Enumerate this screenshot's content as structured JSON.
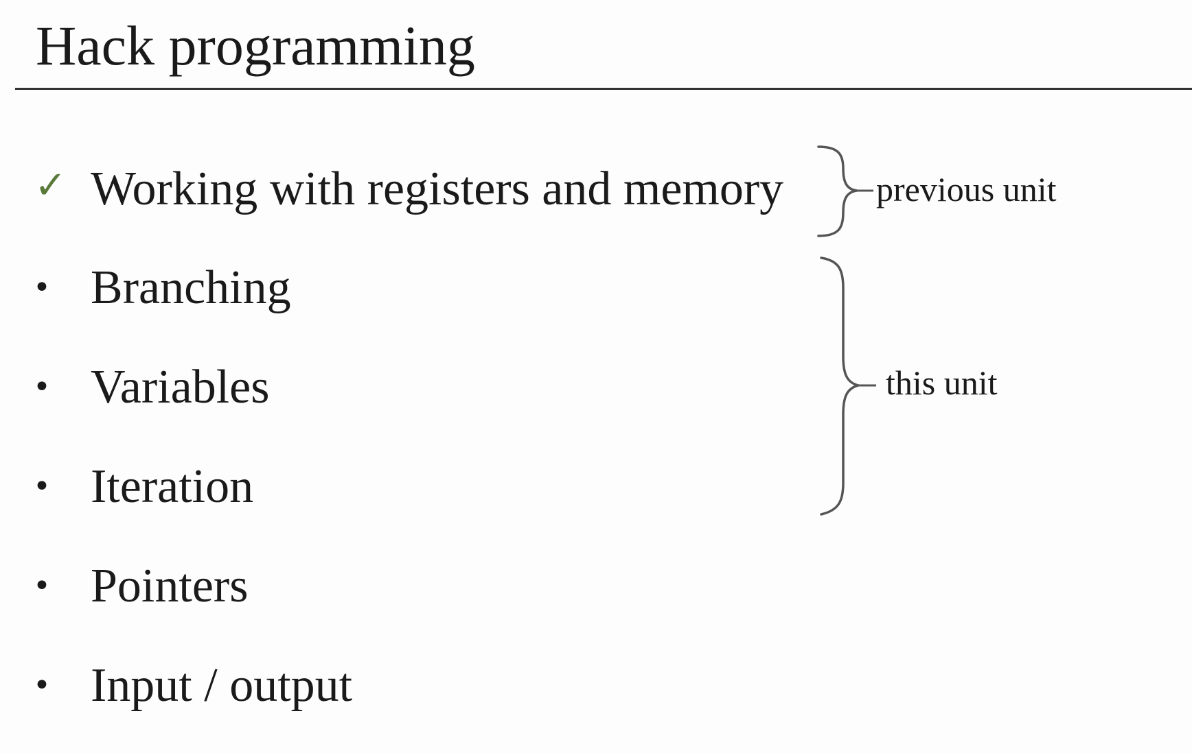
{
  "slide": {
    "title": "Hack programming",
    "items": [
      {
        "marker": "check",
        "label": "Working with registers and memory"
      },
      {
        "marker": "bullet",
        "label": "Branching"
      },
      {
        "marker": "bullet",
        "label": "Variables"
      },
      {
        "marker": "bullet",
        "label": "Iteration"
      },
      {
        "marker": "bullet",
        "label": "Pointers"
      },
      {
        "marker": "bullet",
        "label": "Input / output"
      }
    ],
    "brackets": {
      "previous": "previous unit",
      "current": "this unit"
    },
    "colors": {
      "check": "#5a7a3a",
      "text": "#1a1a1a",
      "brace": "#555555"
    }
  }
}
